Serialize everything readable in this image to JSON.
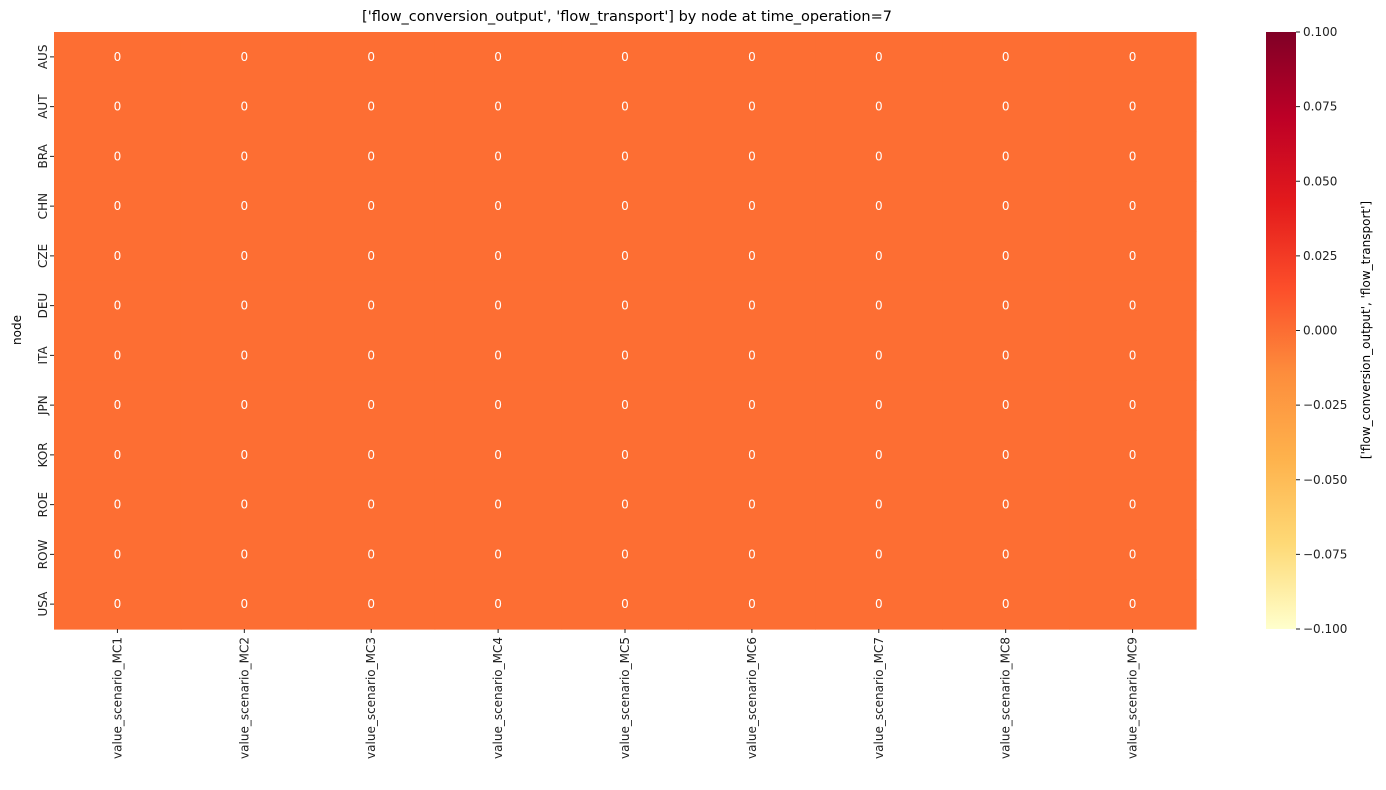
{
  "chart_data": {
    "type": "heatmap",
    "title": "['flow_conversion_output', 'flow_transport'] by node at time_operation=7",
    "xlabel": "",
    "ylabel": "node",
    "x_categories": [
      "value_scenario_MC1",
      "value_scenario_MC2",
      "value_scenario_MC3",
      "value_scenario_MC4",
      "value_scenario_MC5",
      "value_scenario_MC6",
      "value_scenario_MC7",
      "value_scenario_MC8",
      "value_scenario_MC9"
    ],
    "y_categories": [
      "AUS",
      "AUT",
      "BRA",
      "CHN",
      "CZE",
      "DEU",
      "ITA",
      "JPN",
      "KOR",
      "ROE",
      "ROW",
      "USA"
    ],
    "values": [
      [
        0,
        0,
        0,
        0,
        0,
        0,
        0,
        0,
        0
      ],
      [
        0,
        0,
        0,
        0,
        0,
        0,
        0,
        0,
        0
      ],
      [
        0,
        0,
        0,
        0,
        0,
        0,
        0,
        0,
        0
      ],
      [
        0,
        0,
        0,
        0,
        0,
        0,
        0,
        0,
        0
      ],
      [
        0,
        0,
        0,
        0,
        0,
        0,
        0,
        0,
        0
      ],
      [
        0,
        0,
        0,
        0,
        0,
        0,
        0,
        0,
        0
      ],
      [
        0,
        0,
        0,
        0,
        0,
        0,
        0,
        0,
        0
      ],
      [
        0,
        0,
        0,
        0,
        0,
        0,
        0,
        0,
        0
      ],
      [
        0,
        0,
        0,
        0,
        0,
        0,
        0,
        0,
        0
      ],
      [
        0,
        0,
        0,
        0,
        0,
        0,
        0,
        0,
        0
      ],
      [
        0,
        0,
        0,
        0,
        0,
        0,
        0,
        0,
        0
      ],
      [
        0,
        0,
        0,
        0,
        0,
        0,
        0,
        0,
        0
      ]
    ],
    "annotations": true,
    "colormap": "YlOrRd",
    "colormap_stops": [
      "#ffffcc",
      "#fed976",
      "#feb24c",
      "#fd8d3c",
      "#fc4e2a",
      "#e31a1c",
      "#bd0026",
      "#800026"
    ],
    "colorbar": {
      "label": "['flow_conversion_output', 'flow_transport']",
      "range": [
        -0.1,
        0.1
      ],
      "ticks": [
        0.1,
        0.075,
        0.05,
        0.025,
        0.0,
        -0.025,
        -0.05,
        -0.075,
        -0.1
      ],
      "tick_labels": [
        "0.100",
        "0.075",
        "0.050",
        "0.025",
        "0.000",
        "−0.025",
        "−0.050",
        "−0.075",
        "−0.100"
      ]
    },
    "grid": false
  }
}
